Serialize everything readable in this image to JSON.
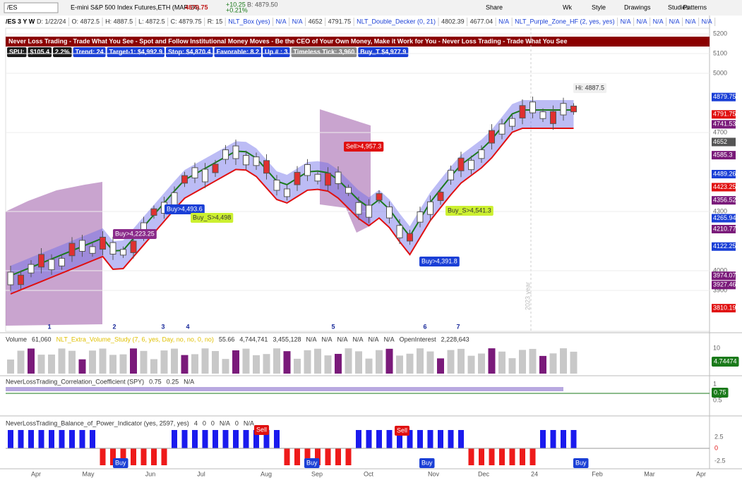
{
  "toolbar": {
    "symbol": "/ES",
    "description": "E-mini S&P 500 Index Futures,ETH (MAR 24)",
    "price": "4879.75",
    "change": "+10.25",
    "change_pct": "+0.21%",
    "bid": "B: 4879.50",
    "buttons": [
      "Share",
      "Wk",
      "Style",
      "Drawings",
      "Studies",
      "Patterns"
    ]
  },
  "study_row": {
    "timeframe": "/ES 3 Y W",
    "items": [
      "D: 1/22/24",
      "O: 4872.5",
      "H: 4887.5",
      "L: 4872.5",
      "C: 4879.75",
      "R: 15",
      "NLT_Box (yes)",
      "N/A",
      "N/A",
      "4652",
      "4791.75",
      "NLT_Double_Decker (0, 21)",
      "4802.39",
      "4677.04",
      "N/A",
      "NLT_Purple_Zone_HF (2, yes, yes)",
      "N/A",
      "N/A",
      "N/A",
      "N/A",
      "N/A",
      "N/A"
    ]
  },
  "banner": "Never Loss Trading - Trade What You See - Spot and Follow Institutional Money Moves - Be the CEO of Your Own Money, Make it Work for You - Never Loss Trading - Trade What You See",
  "badges": [
    "SPU:",
    "$105.4",
    "2.2%",
    "Trend: 24",
    "Target-1: $4,992.9",
    "Stop: $4,870.4",
    "Favorable: 8.2",
    "Up # : 3",
    "Timeless Tick: 3,960",
    "Buy_T $4,977.9"
  ],
  "price_axis": [
    5200,
    5100,
    5000,
    4700,
    4300,
    4000,
    3900
  ],
  "price_tags": [
    {
      "value": 4879.75,
      "color": "#1a3fd6"
    },
    {
      "value": 4791.75,
      "color": "#e01010"
    },
    {
      "value": 4741.53,
      "color": "#7a1a7a"
    },
    {
      "value": 4652,
      "color": "#555555"
    },
    {
      "value": 4585.3,
      "color": "#7a1a7a"
    },
    {
      "value": 4489.26,
      "color": "#1a3fd6"
    },
    {
      "value": 4423.25,
      "color": "#e01010"
    },
    {
      "value": 4356.52,
      "color": "#7a1a7a"
    },
    {
      "value": 4265.94,
      "color": "#1a3fd6"
    },
    {
      "value": 4210.77,
      "color": "#7a1a7a"
    },
    {
      "value": 4122.25,
      "color": "#1a3fd6"
    },
    {
      "value": 3974.07,
      "color": "#7a1a7a"
    },
    {
      "value": 3927.46,
      "color": "#7a1a7a"
    },
    {
      "value": 3810.19,
      "color": "#e01010"
    }
  ],
  "wave_labels": [
    "1",
    "2",
    "3",
    "4",
    "5",
    "6",
    "7"
  ],
  "chart_labels": [
    "Hi: 4887.5",
    "Sell>4,957.3",
    "Buy>4,493.6",
    "Buy_S>4,498",
    "Buy>4,223.25",
    "Buy_S>4,541.3",
    "Buy>4,391.8",
    "2023 year"
  ],
  "volume_header": [
    "Volume",
    "61,060",
    "NLT_Extra_Volume_Study (7, 6, yes, Day, no, no, 0, no)",
    "55.66",
    "4,744,741",
    "3,455,128",
    "N/A",
    "N/A",
    "N/A",
    "N/A",
    "N/A",
    "N/A",
    "OpenInterest",
    "2,228,643"
  ],
  "volume_axis": [
    "10",
    "4.74474"
  ],
  "corr_header": [
    "NeverLossTrading_Correlation_Coefficient (SPY)",
    "0.75",
    "0.25",
    "N/A"
  ],
  "corr_axis": [
    "1",
    "0.75",
    "0.5"
  ],
  "bop_header": [
    "NeverLossTrading_Balance_of_Power_Indicator (yes, 2597, yes)",
    "4",
    "0",
    "0",
    "N/A",
    "0",
    "N/A"
  ],
  "bop_axis": [
    "2.5",
    "0",
    "-2.5"
  ],
  "bop_labels": [
    "Sell",
    "Sell",
    "Buy",
    "Buy",
    "Buy",
    "Buy"
  ],
  "months": [
    "Apr",
    "May",
    "Jun",
    "Jul",
    "Aug",
    "Sep",
    "Oct",
    "Nov",
    "Dec",
    "24",
    "Feb",
    "Mar",
    "Apr"
  ]
}
